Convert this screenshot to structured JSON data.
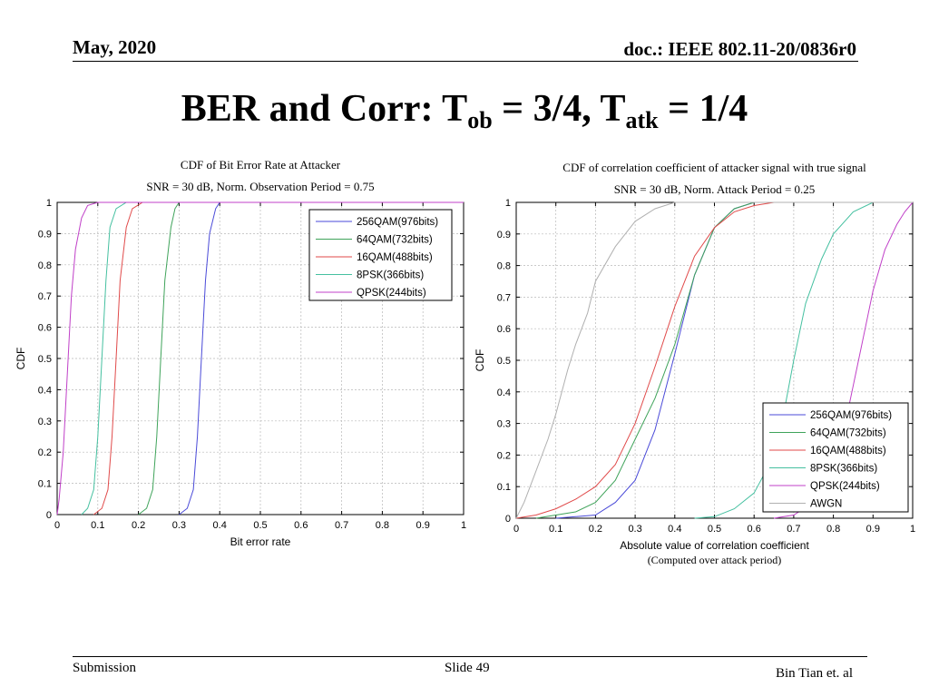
{
  "header": {
    "date": "May, 2020",
    "doc": "doc.: IEEE 802.11-20/0836r0"
  },
  "title": {
    "main": "BER and Corr: T",
    "sub1": "ob",
    "mid": " = 3/4, T",
    "sub2": "atk",
    "end": " = 1/4"
  },
  "footer": {
    "left": "Submission",
    "center": "Slide 49",
    "right": "Bin Tian et. al"
  },
  "chart_data": [
    {
      "type": "line",
      "title": "CDF of Bit Error Rate at Attacker",
      "subtitle": "SNR = 30 dB, Norm. Observation Period = 0.75",
      "xlabel": "Bit error rate",
      "ylabel": "CDF",
      "xlim": [
        0,
        1
      ],
      "ylim": [
        0,
        1
      ],
      "xticks": [
        "0",
        "0.1",
        "0.2",
        "0.3",
        "0.4",
        "0.5",
        "0.6",
        "0.7",
        "0.8",
        "0.9",
        "1"
      ],
      "yticks": [
        "0",
        "0.1",
        "0.2",
        "0.3",
        "0.4",
        "0.5",
        "0.6",
        "0.7",
        "0.8",
        "0.9",
        "1"
      ],
      "grid": true,
      "legend_position": "top-right",
      "series": [
        {
          "name": "256QAM(976bits)",
          "color": "#4a4ad8",
          "x": [
            0.3,
            0.32,
            0.335,
            0.345,
            0.355,
            0.365,
            0.375,
            0.39,
            0.4
          ],
          "y": [
            0,
            0.02,
            0.08,
            0.25,
            0.5,
            0.75,
            0.9,
            0.98,
            1
          ]
        },
        {
          "name": "64QAM(732bits)",
          "color": "#3fa35a",
          "x": [
            0.2,
            0.22,
            0.235,
            0.245,
            0.255,
            0.265,
            0.28,
            0.29,
            0.3
          ],
          "y": [
            0,
            0.02,
            0.08,
            0.25,
            0.5,
            0.75,
            0.92,
            0.98,
            1
          ]
        },
        {
          "name": "16QAM(488bits)",
          "color": "#e04a4a",
          "x": [
            0.09,
            0.11,
            0.125,
            0.135,
            0.145,
            0.155,
            0.17,
            0.185,
            0.21
          ],
          "y": [
            0,
            0.02,
            0.08,
            0.25,
            0.5,
            0.75,
            0.92,
            0.98,
            1
          ]
        },
        {
          "name": "8PSK(366bits)",
          "color": "#45c0a0",
          "x": [
            0.06,
            0.075,
            0.09,
            0.1,
            0.11,
            0.12,
            0.13,
            0.145,
            0.17
          ],
          "y": [
            0,
            0.02,
            0.08,
            0.25,
            0.5,
            0.75,
            0.92,
            0.98,
            1
          ]
        },
        {
          "name": "QPSK(244bits)",
          "color": "#c040c8",
          "x": [
            0.0,
            0.005,
            0.015,
            0.025,
            0.035,
            0.045,
            0.06,
            0.075,
            0.1
          ],
          "y": [
            0,
            0.05,
            0.2,
            0.45,
            0.7,
            0.85,
            0.95,
            0.99,
            1
          ]
        }
      ]
    },
    {
      "type": "line",
      "title": "CDF of correlation coefficient of attacker signal with true signal",
      "subtitle": "SNR = 30 dB, Norm. Attack Period = 0.25",
      "xlabel": "Absolute value of correlation coefficient",
      "xlabel2": "(Computed over attack period)",
      "ylabel": "CDF",
      "xlim": [
        0,
        1
      ],
      "ylim": [
        0,
        1
      ],
      "xticks": [
        "0",
        "0.1",
        "0.2",
        "0.3",
        "0.4",
        "0.5",
        "0.6",
        "0.7",
        "0.8",
        "0.9",
        "1"
      ],
      "yticks": [
        "0",
        "0.1",
        "0.2",
        "0.3",
        "0.4",
        "0.5",
        "0.6",
        "0.7",
        "0.8",
        "0.9",
        "1"
      ],
      "grid": true,
      "legend_position": "bottom-right",
      "series": [
        {
          "name": "256QAM(976bits)",
          "color": "#4a4ad8",
          "x": [
            0.1,
            0.2,
            0.25,
            0.3,
            0.35,
            0.4,
            0.45,
            0.5,
            0.55,
            0.6,
            0.65
          ],
          "y": [
            0,
            0.01,
            0.05,
            0.12,
            0.28,
            0.52,
            0.77,
            0.92,
            0.98,
            1,
            1
          ]
        },
        {
          "name": "64QAM(732bits)",
          "color": "#3fa35a",
          "x": [
            0.05,
            0.15,
            0.2,
            0.25,
            0.3,
            0.35,
            0.4,
            0.45,
            0.5,
            0.55,
            0.6,
            0.65
          ],
          "y": [
            0,
            0.02,
            0.05,
            0.12,
            0.25,
            0.38,
            0.55,
            0.77,
            0.92,
            0.98,
            1,
            1
          ]
        },
        {
          "name": "16QAM(488bits)",
          "color": "#e04a4a",
          "x": [
            0.0,
            0.05,
            0.1,
            0.15,
            0.2,
            0.25,
            0.3,
            0.35,
            0.4,
            0.45,
            0.5,
            0.55,
            0.6,
            0.65
          ],
          "y": [
            0,
            0.01,
            0.03,
            0.06,
            0.1,
            0.17,
            0.3,
            0.48,
            0.67,
            0.83,
            0.92,
            0.97,
            0.99,
            1
          ]
        },
        {
          "name": "8PSK(366bits)",
          "color": "#45c0a0",
          "x": [
            0.45,
            0.5,
            0.55,
            0.6,
            0.63,
            0.67,
            0.7,
            0.73,
            0.77,
            0.8,
            0.85,
            0.9
          ],
          "y": [
            0,
            0.005,
            0.03,
            0.08,
            0.15,
            0.3,
            0.5,
            0.68,
            0.82,
            0.9,
            0.97,
            1
          ]
        },
        {
          "name": "QPSK(244bits)",
          "color": "#c040c8",
          "x": [
            0.65,
            0.7,
            0.75,
            0.8,
            0.83,
            0.85,
            0.88,
            0.9,
            0.93,
            0.96,
            0.98,
            1.0
          ],
          "y": [
            0,
            0.01,
            0.05,
            0.15,
            0.3,
            0.42,
            0.6,
            0.72,
            0.85,
            0.93,
            0.97,
            1
          ]
        },
        {
          "name": "AWGN",
          "color": "#b0b0b0",
          "x": [
            0.0,
            0.02,
            0.05,
            0.08,
            0.1,
            0.13,
            0.15,
            0.18,
            0.2,
            0.25,
            0.3,
            0.35,
            0.4
          ],
          "y": [
            0,
            0.05,
            0.15,
            0.25,
            0.33,
            0.47,
            0.55,
            0.65,
            0.75,
            0.86,
            0.94,
            0.98,
            1
          ]
        }
      ]
    }
  ]
}
